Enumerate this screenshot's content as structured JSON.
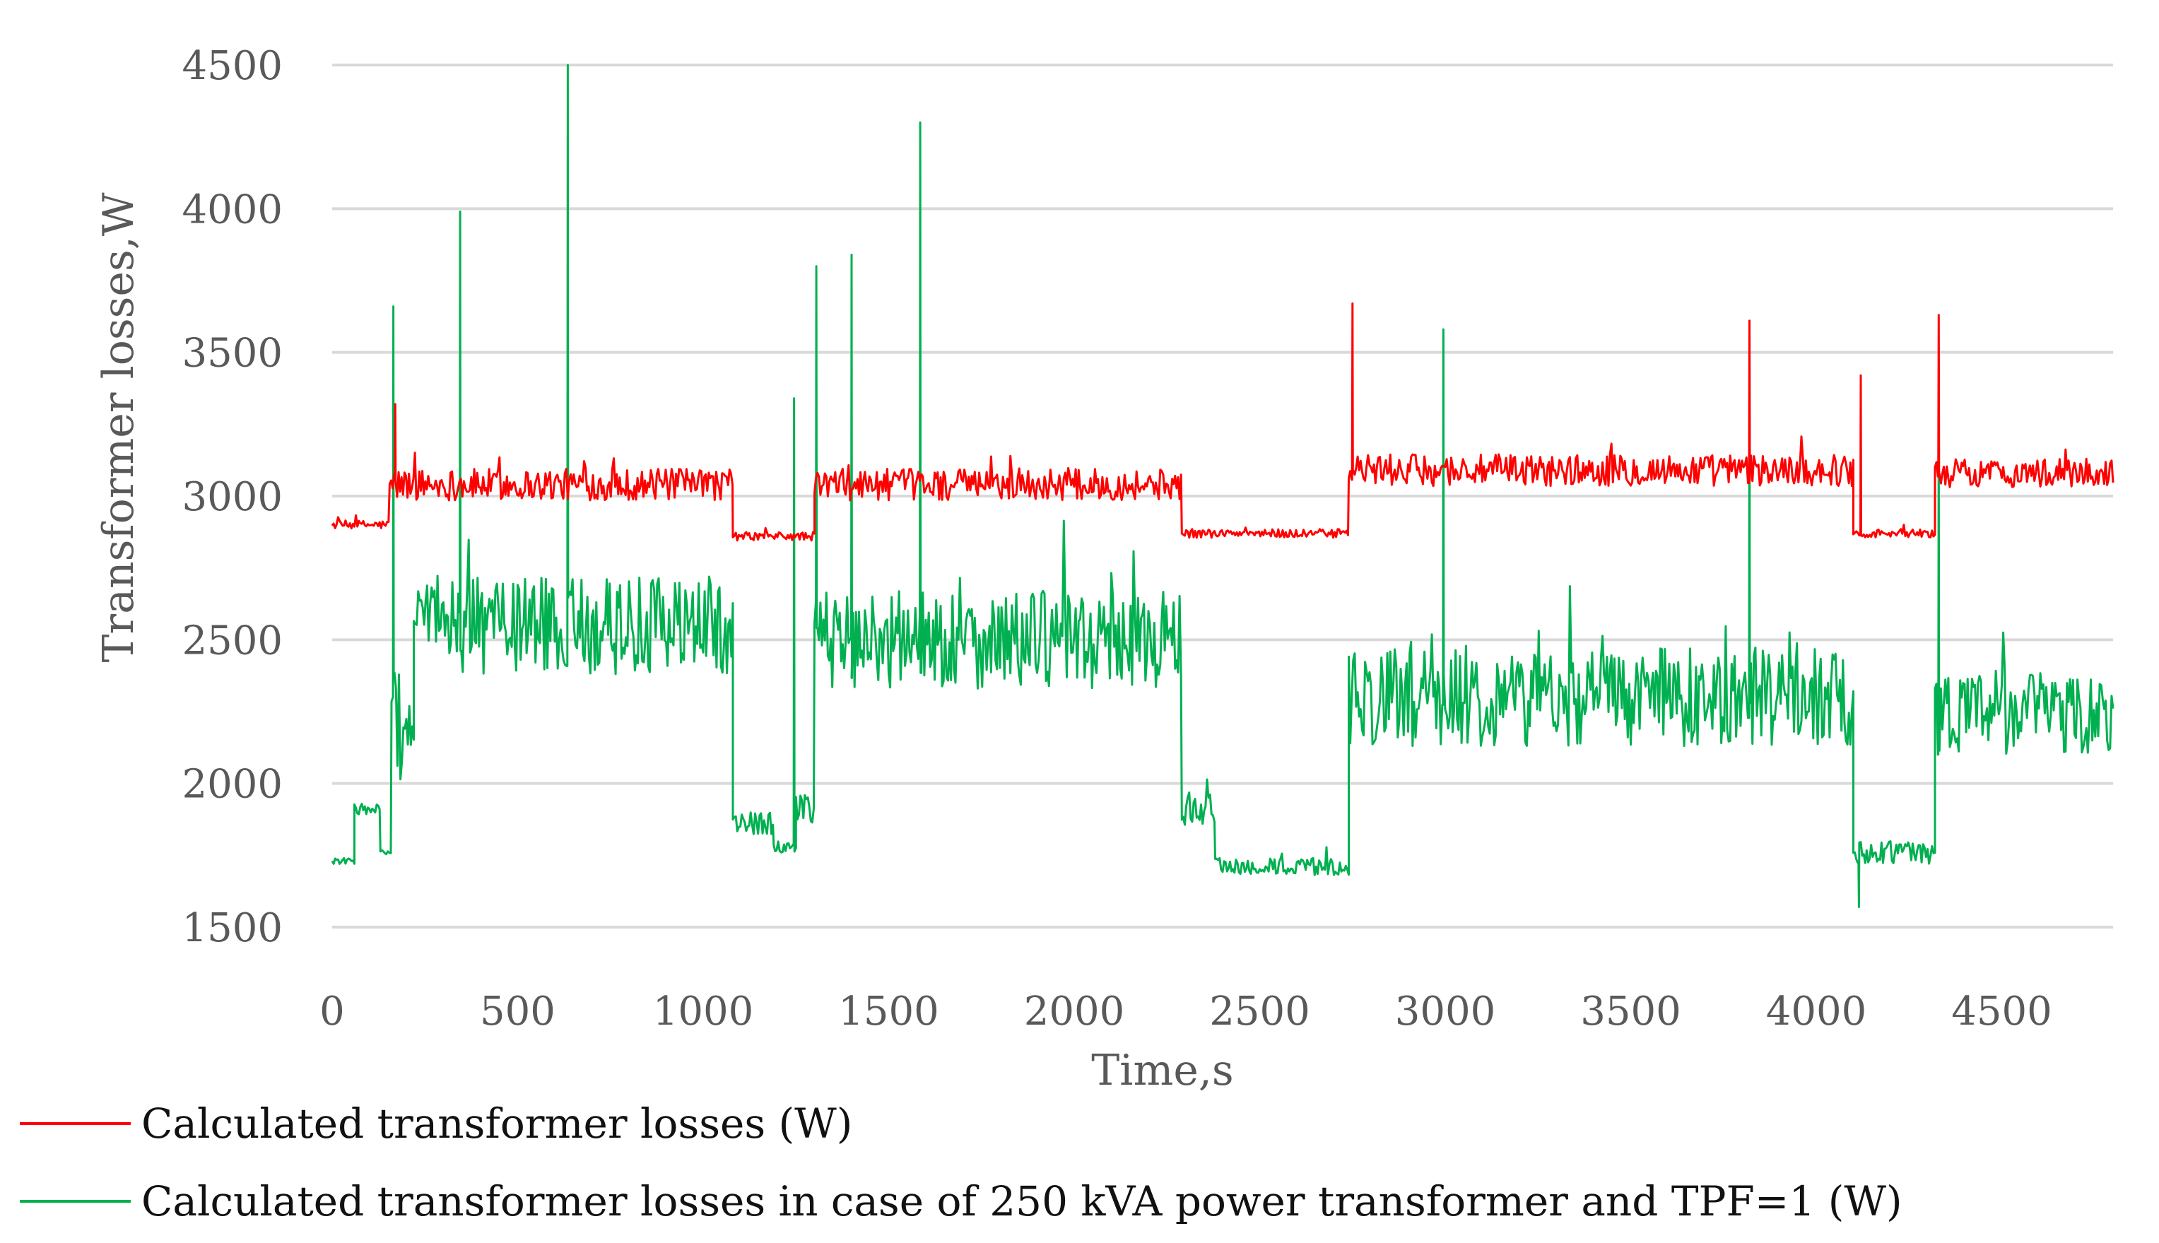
{
  "chart_data": {
    "type": "line",
    "title": "",
    "xlabel": "Time,s",
    "ylabel": "Transformer losses,W",
    "xlim": [
      0,
      4800
    ],
    "ylim": [
      1500,
      4500
    ],
    "xticks": [
      0,
      500,
      1000,
      1500,
      2000,
      2500,
      3000,
      3500,
      4000,
      4500
    ],
    "yticks": [
      1500,
      2000,
      2500,
      3000,
      3500,
      4000,
      4500
    ],
    "xtick_labels": [
      "0",
      "500",
      "1000",
      "1500",
      "2000",
      "2500",
      "3000",
      "3500",
      "4000",
      "4500"
    ],
    "ytick_labels": [
      "1500",
      "2000",
      "2500",
      "3000",
      "3500",
      "4000",
      "4500"
    ],
    "grid": "horizontal",
    "legend_position": "bottom-left",
    "series": [
      {
        "name": "Calculated transformer losses (W)",
        "color": "#ff0000",
        "segments": [
          {
            "start": 0,
            "end": 155,
            "mean": 2900,
            "noise": 15
          },
          {
            "start": 155,
            "end": 1080,
            "mean": 3040,
            "noise": 55
          },
          {
            "start": 1080,
            "end": 1300,
            "mean": 2860,
            "noise": 15
          },
          {
            "start": 1300,
            "end": 2290,
            "mean": 3040,
            "noise": 55
          },
          {
            "start": 2290,
            "end": 2740,
            "mean": 2870,
            "noise": 15
          },
          {
            "start": 2740,
            "end": 4100,
            "mean": 3090,
            "noise": 55
          },
          {
            "start": 4100,
            "end": 4320,
            "mean": 2870,
            "noise": 15
          },
          {
            "start": 4320,
            "end": 4800,
            "mean": 3080,
            "noise": 50
          }
        ],
        "spikes": [
          {
            "x": 170,
            "y": 3320
          },
          {
            "x": 2750,
            "y": 3670
          },
          {
            "x": 3820,
            "y": 3610
          },
          {
            "x": 4120,
            "y": 3420
          },
          {
            "x": 4330,
            "y": 3630
          }
        ]
      },
      {
        "name": "Calculated transformer losses in case of 250 kVA power transformer and TPF=1 (W)",
        "color": "#00b050",
        "segments": [
          {
            "start": 0,
            "end": 60,
            "mean": 1730,
            "noise": 10
          },
          {
            "start": 60,
            "end": 130,
            "mean": 1910,
            "noise": 20
          },
          {
            "start": 130,
            "end": 160,
            "mean": 1760,
            "noise": 10
          },
          {
            "start": 160,
            "end": 220,
            "mean": 2200,
            "noise": 200
          },
          {
            "start": 220,
            "end": 1080,
            "mean": 2550,
            "noise": 170
          },
          {
            "start": 1080,
            "end": 1190,
            "mean": 1860,
            "noise": 40
          },
          {
            "start": 1190,
            "end": 1250,
            "mean": 1780,
            "noise": 20
          },
          {
            "start": 1250,
            "end": 1300,
            "mean": 1900,
            "noise": 60
          },
          {
            "start": 1300,
            "end": 2290,
            "mean": 2500,
            "noise": 170
          },
          {
            "start": 2290,
            "end": 2380,
            "mean": 1900,
            "noise": 60
          },
          {
            "start": 2380,
            "end": 2740,
            "mean": 1710,
            "noise": 30
          },
          {
            "start": 2740,
            "end": 4100,
            "mean": 2300,
            "noise": 170
          },
          {
            "start": 4100,
            "end": 4320,
            "mean": 1760,
            "noise": 40
          },
          {
            "start": 4320,
            "end": 4800,
            "mean": 2250,
            "noise": 150
          }
        ],
        "spikes": [
          {
            "x": 165,
            "y": 3660
          },
          {
            "x": 345,
            "y": 3990
          },
          {
            "x": 635,
            "y": 4500
          },
          {
            "x": 1245,
            "y": 3340
          },
          {
            "x": 1305,
            "y": 3800
          },
          {
            "x": 1400,
            "y": 3840
          },
          {
            "x": 1585,
            "y": 4300
          },
          {
            "x": 2995,
            "y": 3580
          },
          {
            "x": 3820,
            "y": 3610
          },
          {
            "x": 4115,
            "y": 1570
          },
          {
            "x": 4330,
            "y": 3200
          }
        ]
      }
    ]
  }
}
